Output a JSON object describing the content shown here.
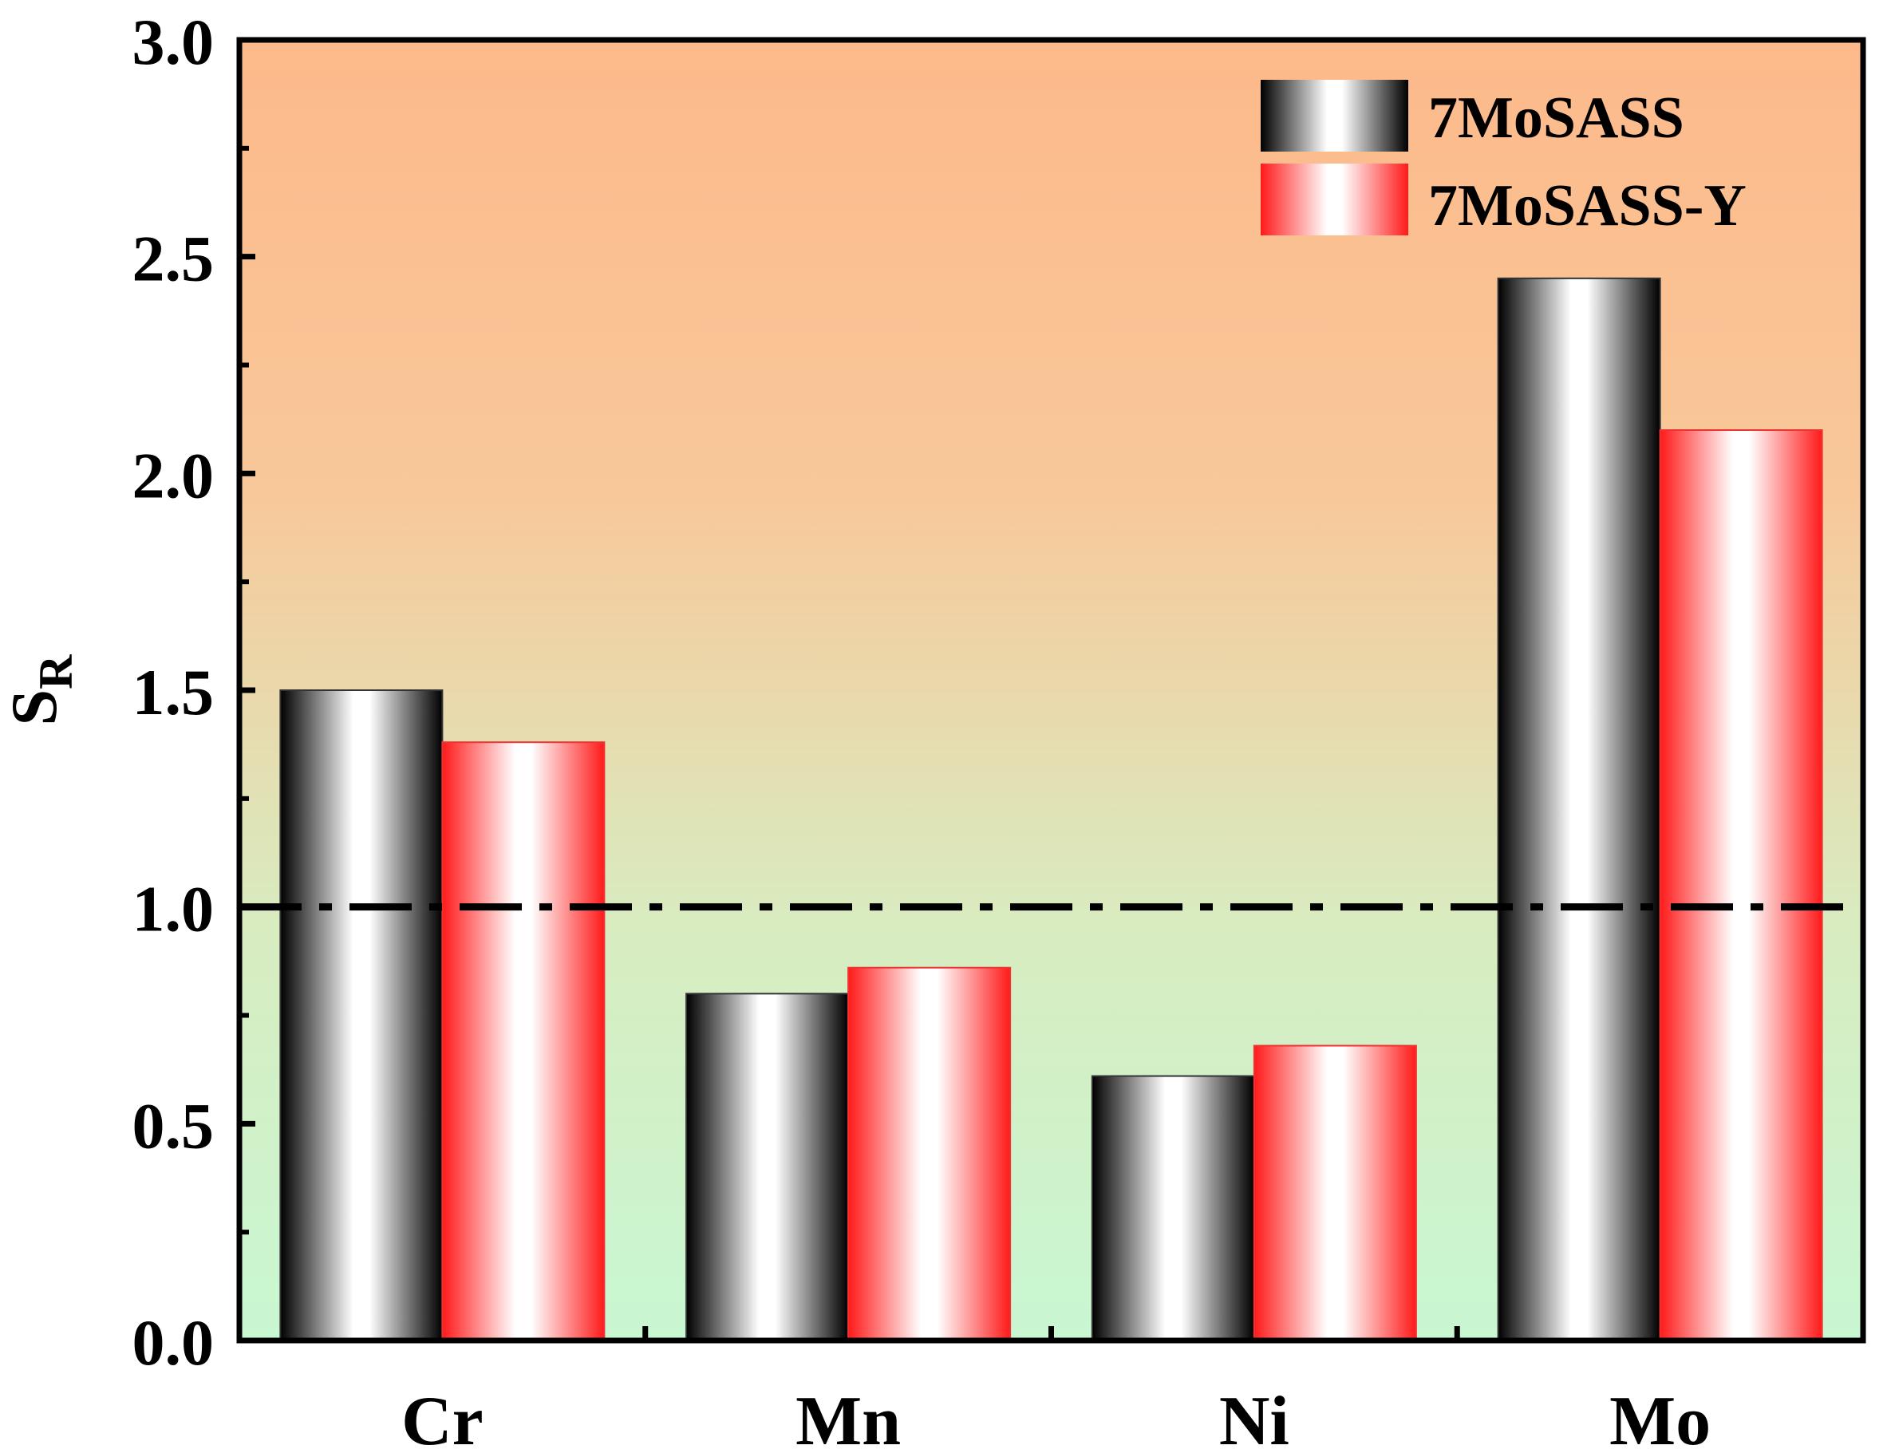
{
  "chart_data": {
    "type": "bar",
    "title": "",
    "xlabel": "",
    "ylabel_main": "S",
    "ylabel_sub": "R",
    "categories": [
      "Cr",
      "Mn",
      "Ni",
      "Mo"
    ],
    "series": [
      {
        "name": "7MoSASS",
        "values": [
          1.5,
          0.8,
          0.61,
          2.45
        ],
        "color": "#000000"
      },
      {
        "name": "7MoSASS-Y",
        "values": [
          1.38,
          0.86,
          0.68,
          2.1
        ],
        "color": "#ff1a1a"
      }
    ],
    "ylim": [
      0,
      3.0
    ],
    "yticks": [
      "0.0",
      "0.5",
      "1.0",
      "1.5",
      "2.0",
      "2.5",
      "3.0"
    ],
    "reference_line": 1.0,
    "legend_position": "top-right",
    "background_gradient": [
      "#fdb98a",
      "#f8c89a",
      "#d2f0c8",
      "#c8f7d2"
    ]
  }
}
